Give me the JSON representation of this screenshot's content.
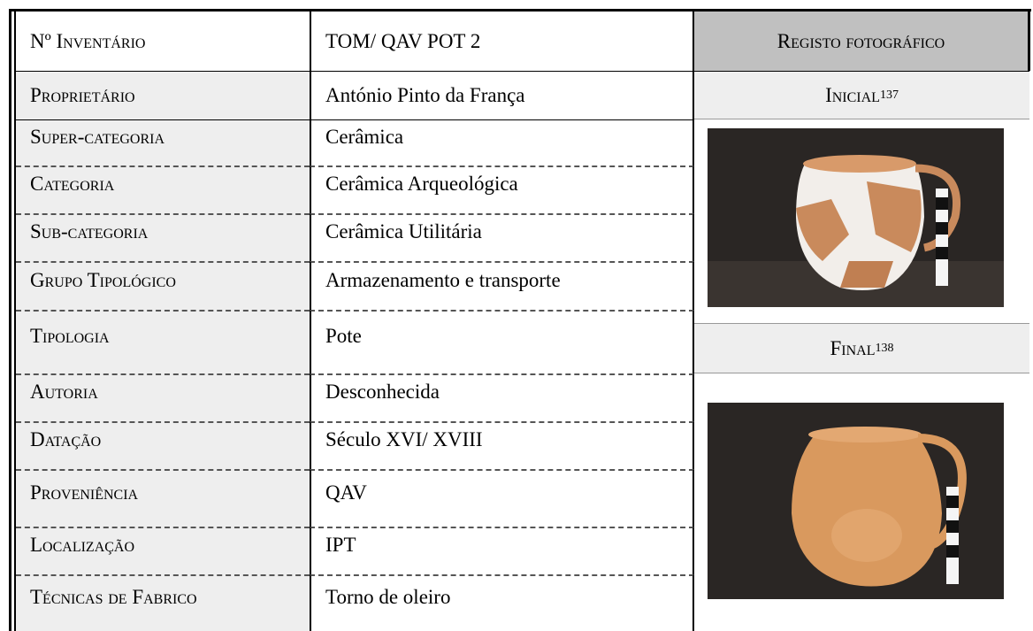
{
  "table": {
    "rows": [
      [
        "Nº Inventário",
        "TOM/ QAV POT 2"
      ],
      [
        "Proprietário",
        "António Pinto da França"
      ],
      [
        "Super-categoria",
        "Cerâmica"
      ],
      [
        "Categoria",
        "Cerâmica Arqueológica"
      ],
      [
        "Sub-categoria",
        "Cerâmica Utilitária"
      ],
      [
        "Grupo Tipológico",
        "Armazenamento e transporte"
      ],
      [
        "Tipologia",
        "Pote"
      ],
      [
        "Autoria",
        "Desconhecida"
      ],
      [
        "Datação",
        "Século XVI/ XVIII"
      ],
      [
        "Proveniência",
        "QAV"
      ],
      [
        "Localização",
        "IPT"
      ],
      [
        "Técnicas de Fabrico",
        "Torno de oleiro"
      ]
    ],
    "photo_header": "Registo fotográfico",
    "initial": {
      "label": "Inicial",
      "note": "137"
    },
    "final": {
      "label": "Final",
      "note": "138"
    }
  }
}
